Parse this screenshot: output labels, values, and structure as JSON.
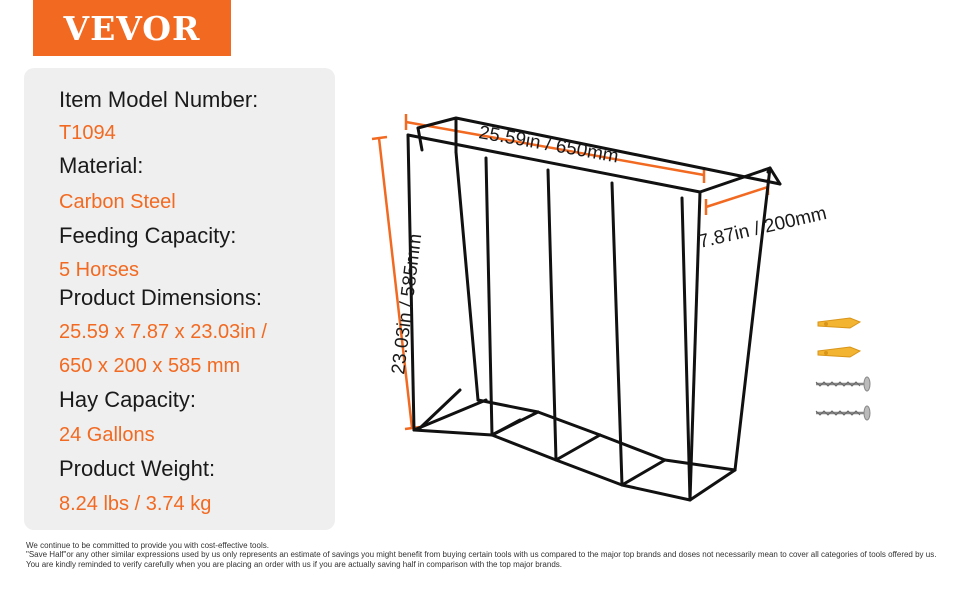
{
  "brand": {
    "logo_text": "VEVOR",
    "accent_color": "#f26a21"
  },
  "specs": [
    {
      "label": "Item Model Number:",
      "value": "T1094"
    },
    {
      "label": "Material:",
      "value": "Carbon Steel"
    },
    {
      "label": "Feeding Capacity:",
      "value": "5 Horses"
    },
    {
      "label": "Product Dimensions:",
      "value": "25.59 x 7.87 x 23.03in /",
      "value2": "650 x 200 x 585 mm"
    },
    {
      "label": "Hay Capacity:",
      "value": "24 Gallons"
    },
    {
      "label": "Product Weight:",
      "value": "8.24 lbs / 3.74 kg"
    }
  ],
  "dimensions": {
    "width": "25.59in / 650mm",
    "depth": "7.87in / 200mm",
    "height": "23.03in / 585mm"
  },
  "disclaimer": {
    "line1": "We continue to be committed to provide you with cost-effective tools.",
    "line2": "\"Save Half\"or any other similar expressions used by us only represents an estimate of savings you might benefit from buying certain tools with us compared to the major top brands and doses not necessarily mean to cover all categories of tools offered by us.",
    "line3": "You are kindly reminded to verify carefully when you are placing an order with us if you are actually saving half in comparison with the top major brands."
  }
}
